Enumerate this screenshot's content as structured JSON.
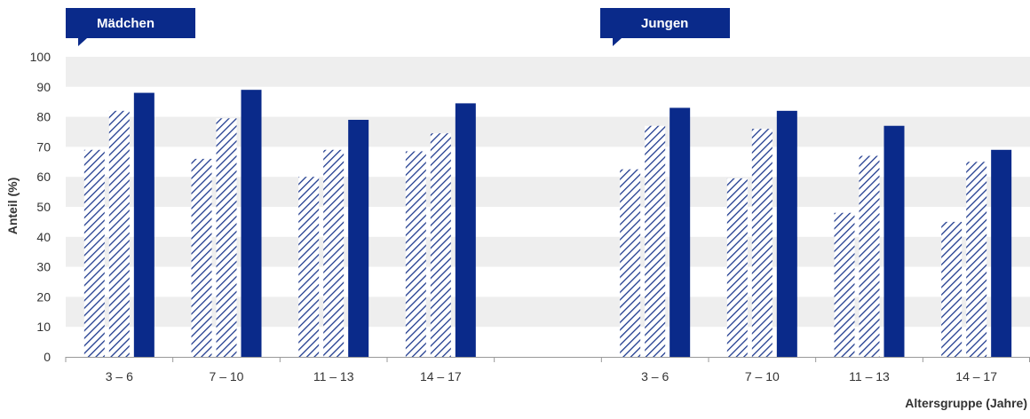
{
  "colors": {
    "bar_solid": "#0a2a8a",
    "hatch": "#1f3b8f",
    "band": "#eeeeee",
    "label_bg": "#0a2a8a"
  },
  "chart_data": {
    "type": "bar",
    "ylabel": "Anteil (%)",
    "xlabel": "Altersgruppe (Jahre)",
    "ylim": [
      0,
      100
    ],
    "yticks": [
      0,
      10,
      20,
      30,
      40,
      50,
      60,
      70,
      80,
      90,
      100
    ],
    "grid": "alternating horizontal bands",
    "legend": "none",
    "groups": [
      {
        "name": "Mädchen",
        "categories": [
          "3 – 6",
          "7 – 10",
          "11 – 13",
          "14 – 17"
        ],
        "series": [
          {
            "style": "hatched",
            "values": [
              69,
              66,
              60,
              68.5
            ]
          },
          {
            "style": "hatched",
            "values": [
              82,
              79.5,
              69,
              74.5
            ]
          },
          {
            "style": "solid",
            "values": [
              88,
              89,
              79,
              84.5
            ]
          }
        ]
      },
      {
        "name": "Jungen",
        "categories": [
          "3 – 6",
          "7 – 10",
          "11 – 13",
          "14 – 17"
        ],
        "series": [
          {
            "style": "hatched",
            "values": [
              62.5,
              59.5,
              48,
              45
            ]
          },
          {
            "style": "hatched",
            "values": [
              77,
              76,
              67,
              65
            ]
          },
          {
            "style": "solid",
            "values": [
              83,
              82,
              77,
              69
            ]
          }
        ]
      }
    ]
  }
}
